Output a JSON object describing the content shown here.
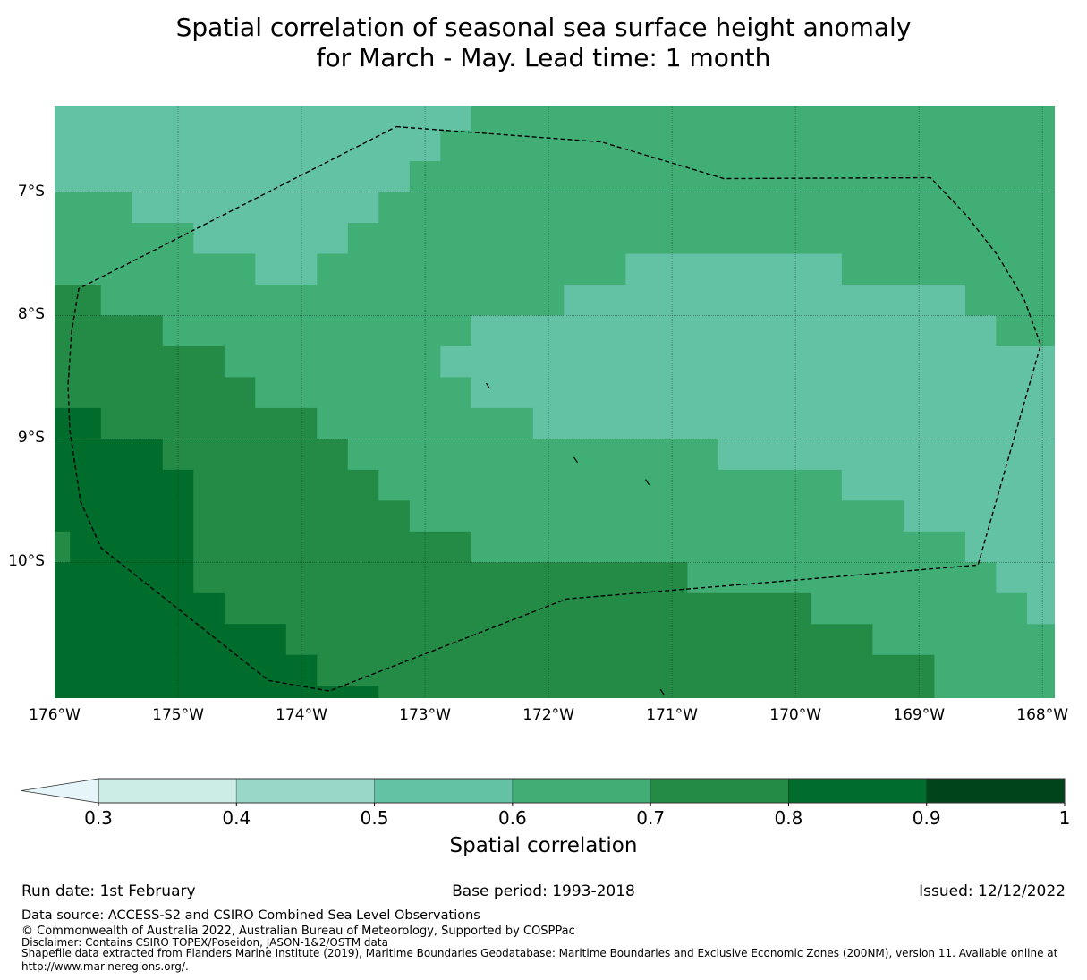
{
  "title": {
    "line1": "Spatial correlation of seasonal sea surface height anomaly",
    "line2": "for March - May. Lead time: 1 month"
  },
  "chart_data": {
    "type": "heatmap",
    "title": "Spatial correlation of seasonal sea surface height anomaly for March - May. Lead time: 1 month",
    "extent": {
      "lon": [
        -176.0,
        -167.9
      ],
      "lat": [
        -11.1,
        -6.3
      ]
    },
    "grid": {
      "lon_start": -176.125,
      "lat_start": -6.25,
      "cell_deg": 0.25,
      "columns": 33,
      "encoding": "each row is a list of [colorbar_bin_index, run_length] from west to east; rows from north to south",
      "rows": [
        [
          [
            2,
            14
          ],
          [
            3,
            19
          ]
        ],
        [
          [
            2,
            13
          ],
          [
            3,
            20
          ]
        ],
        [
          [
            2,
            12
          ],
          [
            3,
            21
          ]
        ],
        [
          [
            3,
            3
          ],
          [
            2,
            8
          ],
          [
            3,
            22
          ]
        ],
        [
          [
            3,
            5
          ],
          [
            2,
            5
          ],
          [
            3,
            23
          ]
        ],
        [
          [
            3,
            7
          ],
          [
            2,
            2
          ],
          [
            3,
            10
          ],
          [
            2,
            7
          ],
          [
            3,
            7
          ]
        ],
        [
          [
            4,
            2
          ],
          [
            3,
            15
          ],
          [
            2,
            13
          ],
          [
            3,
            3
          ]
        ],
        [
          [
            4,
            4
          ],
          [
            3,
            10
          ],
          [
            2,
            17
          ],
          [
            3,
            2
          ]
        ],
        [
          [
            4,
            6
          ],
          [
            3,
            7
          ],
          [
            2,
            20
          ]
        ],
        [
          [
            4,
            7
          ],
          [
            3,
            7
          ],
          [
            2,
            19
          ]
        ],
        [
          [
            5,
            2
          ],
          [
            4,
            7
          ],
          [
            3,
            7
          ],
          [
            2,
            17
          ]
        ],
        [
          [
            5,
            4
          ],
          [
            4,
            6
          ],
          [
            3,
            12
          ],
          [
            2,
            11
          ]
        ],
        [
          [
            5,
            5
          ],
          [
            4,
            6
          ],
          [
            3,
            15
          ],
          [
            2,
            7
          ]
        ],
        [
          [
            5,
            5
          ],
          [
            4,
            7
          ],
          [
            3,
            16
          ],
          [
            2,
            5
          ]
        ],
        [
          [
            4,
            1
          ],
          [
            5,
            4
          ],
          [
            4,
            9
          ],
          [
            3,
            16
          ],
          [
            2,
            3
          ]
        ],
        [
          [
            5,
            5
          ],
          [
            4,
            16
          ],
          [
            3,
            10
          ],
          [
            2,
            2
          ]
        ],
        [
          [
            5,
            6
          ],
          [
            4,
            19
          ],
          [
            3,
            7
          ],
          [
            2,
            1
          ]
        ],
        [
          [
            5,
            8
          ],
          [
            4,
            19
          ],
          [
            3,
            6
          ]
        ],
        [
          [
            5,
            9
          ],
          [
            4,
            20
          ],
          [
            3,
            4
          ]
        ],
        [
          [
            5,
            11
          ],
          [
            4,
            18
          ],
          [
            3,
            4
          ]
        ]
      ]
    },
    "eez_boundary_lonlat": [
      [
        -173.232,
        -6.471
      ],
      [
        -171.572,
        -6.594
      ],
      [
        -170.58,
        -6.891
      ],
      [
        -168.906,
        -6.884
      ],
      [
        -168.616,
        -7.188
      ],
      [
        -168.362,
        -7.514
      ],
      [
        -168.145,
        -7.877
      ],
      [
        -168.014,
        -8.239
      ],
      [
        -168.522,
        -10.022
      ],
      [
        -171.855,
        -10.297
      ],
      [
        -173.775,
        -11.043
      ],
      [
        -174.268,
        -10.957
      ],
      [
        -175.623,
        -9.884
      ],
      [
        -175.79,
        -9.507
      ],
      [
        -175.877,
        -8.928
      ],
      [
        -175.891,
        -8.565
      ],
      [
        -175.862,
        -8.13
      ],
      [
        -175.804,
        -7.783
      ],
      [
        -173.232,
        -6.471
      ]
    ],
    "islands_lonlat": [
      [
        -172.49,
        -8.57
      ],
      [
        -171.78,
        -9.17
      ],
      [
        -171.2,
        -9.35
      ],
      [
        -171.08,
        -11.05
      ]
    ],
    "x_ticks": [
      {
        "value": -176,
        "label": "176°W"
      },
      {
        "value": -175,
        "label": "175°W"
      },
      {
        "value": -174,
        "label": "174°W"
      },
      {
        "value": -173,
        "label": "173°W"
      },
      {
        "value": -172,
        "label": "172°W"
      },
      {
        "value": -171,
        "label": "171°W"
      },
      {
        "value": -170,
        "label": "170°W"
      },
      {
        "value": -169,
        "label": "169°W"
      },
      {
        "value": -168,
        "label": "168°W"
      }
    ],
    "y_ticks": [
      {
        "value": -7,
        "label": "7°S"
      },
      {
        "value": -8,
        "label": "8°S"
      },
      {
        "value": -9,
        "label": "9°S"
      },
      {
        "value": -10,
        "label": "10°S"
      }
    ],
    "grid_lines": true
  },
  "colorbar": {
    "label": "Spatial correlation",
    "extend_color": "#e5f5f9",
    "bins": [
      {
        "range": [
          0.3,
          0.4
        ],
        "color": "#ccece6"
      },
      {
        "range": [
          0.4,
          0.5
        ],
        "color": "#99d8c9"
      },
      {
        "range": [
          0.5,
          0.6
        ],
        "color": "#62c2a3"
      },
      {
        "range": [
          0.6,
          0.7
        ],
        "color": "#41ae76"
      },
      {
        "range": [
          0.7,
          0.8
        ],
        "color": "#238b45"
      },
      {
        "range": [
          0.8,
          0.9
        ],
        "color": "#006d2c"
      },
      {
        "range": [
          0.9,
          1.0
        ],
        "color": "#00441b"
      }
    ],
    "ticks": [
      "0.3",
      "0.4",
      "0.5",
      "0.6",
      "0.7",
      "0.8",
      "0.9",
      "1"
    ]
  },
  "footer": {
    "run_date": "Run date: 1st February",
    "base_period": "Base period: 1993-2018",
    "issued": "Issued: 12/12/2022",
    "data_source": "Data source: ACCESS-S2 and CSIRO Combined Sea Level Observations",
    "copyright": "© Commonwealth of Australia 2022, Australian Bureau of Meteorology, Supported by COSPPac",
    "disclaimer": "Disclaimer: Contains CSIRO TOPEX/Poseidon, JASON-1&2/OSTM data",
    "shapefile_1": "Shapefile data extracted from Flanders Marine Institute (2019), Maritime Boundaries Geodatabase: Maritime Boundaries and Exclusive Economic Zones (200NM), version 11. Available online at",
    "shapefile_2": "http://www.marineregions.org/."
  }
}
